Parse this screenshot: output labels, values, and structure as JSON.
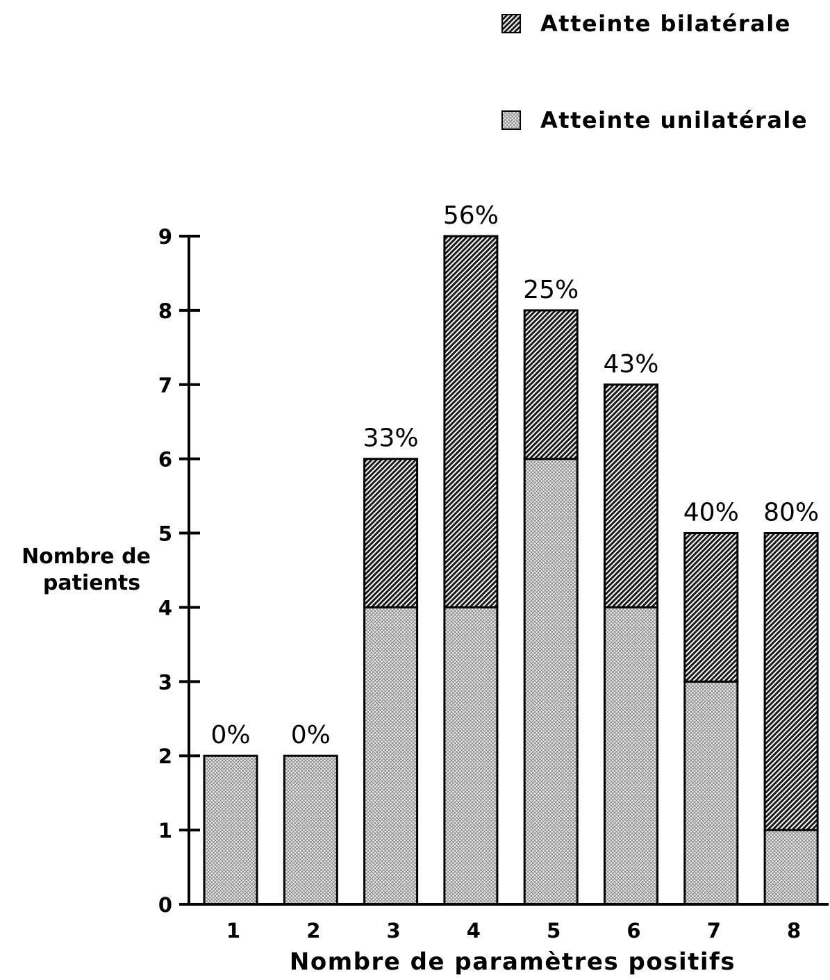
{
  "chart_data": {
    "type": "bar",
    "stacked": true,
    "title": "",
    "xlabel": "Nombre de paramètres positifs",
    "ylabel": [
      "Nombre de",
      "patients"
    ],
    "ylim": [
      0,
      9
    ],
    "yticks": [
      "0",
      "1",
      "2",
      "3",
      "4",
      "5",
      "6",
      "7",
      "8",
      "9"
    ],
    "categories": [
      "1",
      "2",
      "3",
      "4",
      "5",
      "6",
      "7",
      "8"
    ],
    "series": [
      {
        "name": "Atteinte unilatérale",
        "values": [
          2,
          2,
          4,
          4,
          6,
          4,
          3,
          1
        ],
        "pattern": "crosshatch-light"
      },
      {
        "name": "Atteinte bilatérale",
        "values": [
          0,
          0,
          2,
          5,
          2,
          3,
          2,
          4
        ],
        "pattern": "diagonal-dark"
      }
    ],
    "bar_labels": [
      "0%",
      "0%",
      "33%",
      "56%",
      "25%",
      "43%",
      "40%",
      "80%"
    ],
    "legend_position": "top-right",
    "legend_order": [
      "Atteinte bilatérale",
      "Atteinte unilatérale"
    ],
    "grid": false,
    "colors": {
      "bar_outline": "#000000",
      "dark_hatch": "#1a1a1a",
      "light_hatch_bg": "#e6e6e6"
    }
  }
}
